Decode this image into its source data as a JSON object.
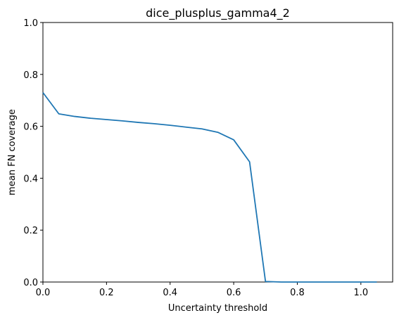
{
  "chart_data": {
    "type": "line",
    "title": "dice_plusplus_gamma4_2",
    "xlabel": "Uncertainty threshold",
    "ylabel": "mean FN coverage",
    "xlim": [
      0,
      1.1
    ],
    "ylim": [
      0,
      1.0
    ],
    "x_ticks": [
      0.0,
      0.2,
      0.4,
      0.6,
      0.8,
      1.0
    ],
    "x_tick_labels": [
      "0.0",
      "0.2",
      "0.4",
      "0.6",
      "0.8",
      "1.0"
    ],
    "y_ticks": [
      0.0,
      0.2,
      0.4,
      0.6,
      0.8,
      1.0
    ],
    "y_tick_labels": [
      "0.0",
      "0.2",
      "0.4",
      "0.6",
      "0.8",
      "1.0"
    ],
    "grid": false,
    "series": [
      {
        "color": "#1f77b4",
        "x": [
          0.0,
          0.05,
          0.1,
          0.15,
          0.2,
          0.25,
          0.3,
          0.35,
          0.4,
          0.45,
          0.5,
          0.55,
          0.6,
          0.65,
          0.7,
          0.75,
          0.8,
          0.85,
          0.9,
          0.95,
          1.0,
          1.05
        ],
        "y": [
          0.73,
          0.648,
          0.638,
          0.631,
          0.626,
          0.621,
          0.615,
          0.61,
          0.604,
          0.597,
          0.59,
          0.577,
          0.548,
          0.463,
          0.002,
          0.0,
          0.0,
          0.0,
          0.0,
          0.0,
          0.0,
          0.0
        ]
      }
    ]
  }
}
